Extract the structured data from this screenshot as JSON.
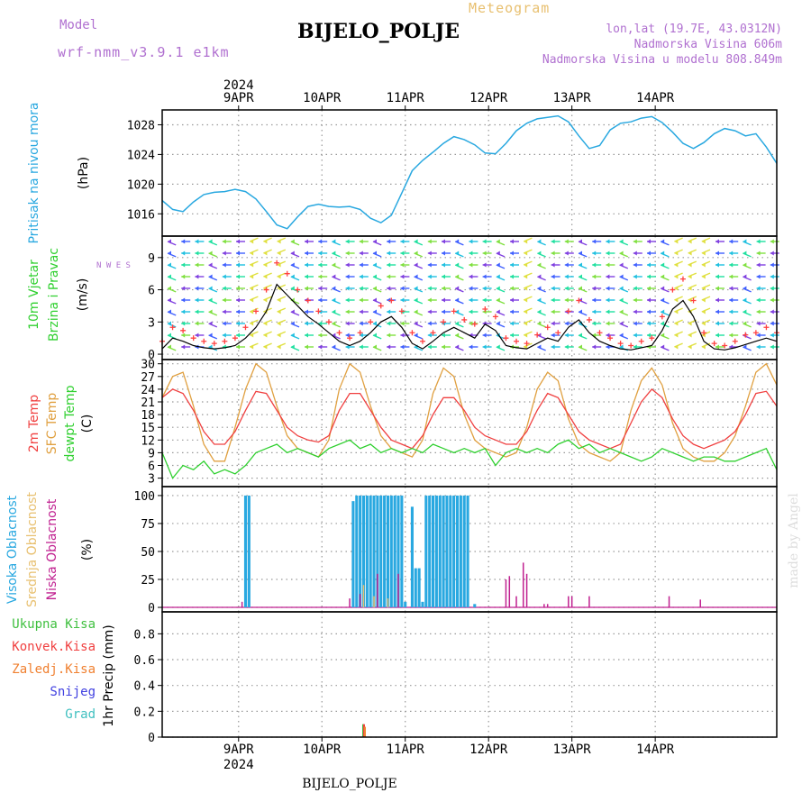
{
  "header": {
    "model_label": "Model",
    "model_name": "wrf-nmm_v3.9.1 e1km",
    "meteogram": "Meteogram",
    "station": "BIJELO_POLJE",
    "lonlat": "lon,lat (19.7E, 43.0312N)",
    "altitude": "Nadmorska Visina 606m",
    "model_altitude": "Nadmorska Visina u modelu 808.849m"
  },
  "footer": {
    "station": "BIJELO_POLJE"
  },
  "watermark": "made by Angel",
  "colors": {
    "pressure": "#29a8e0",
    "wind_speed": "#000000",
    "wind_gust": "#ff4040",
    "temp_2m": "#f04040",
    "temp_sfc": "#e0a040",
    "dewpoint": "#30d030",
    "cloud_high": "#29a8e0",
    "cloud_mid": "#e8c070",
    "cloud_low": "#c02090",
    "precip_total": "#40c040",
    "precip_conv": "#f04040",
    "precip_strat": "#f08030",
    "snow": "#4040e0",
    "hail": "#40c0c0",
    "grid": "#999999"
  },
  "chart_data": [
    {
      "type": "line",
      "panel": "pressure",
      "ylabel": "Pritisak na nivou mora",
      "unit": "(hPa)",
      "x_unit": "hours from 2024-04-08 12 UTC",
      "date_ticks": [
        "9APR",
        "10APR",
        "11APR",
        "12APR",
        "13APR",
        "14APR"
      ],
      "year": "2024",
      "yticks": [
        1016,
        1020,
        1024,
        1028
      ],
      "ylim": [
        1013,
        1030
      ],
      "series": [
        {
          "name": "MSLP",
          "x": [
            0,
            3,
            6,
            9,
            12,
            15,
            18,
            21,
            24,
            27,
            30,
            33,
            36,
            39,
            42,
            45,
            48,
            51,
            54,
            57,
            60,
            63,
            66,
            69,
            72,
            75,
            78,
            81,
            84,
            87,
            90,
            93,
            96,
            99,
            102,
            105,
            108,
            111,
            114,
            117,
            120,
            123,
            126,
            129,
            132,
            135,
            138,
            141,
            144,
            147,
            150,
            153,
            156,
            159,
            162,
            165,
            168,
            171,
            174,
            177
          ],
          "values": [
            1017.8,
            1016.6,
            1016.3,
            1017.6,
            1018.6,
            1018.9,
            1019.0,
            1019.3,
            1019.0,
            1018.0,
            1016.3,
            1014.5,
            1014.0,
            1015.6,
            1017.0,
            1017.3,
            1017.0,
            1016.9,
            1017.0,
            1016.6,
            1015.4,
            1014.8,
            1015.8,
            1018.8,
            1021.8,
            1023.2,
            1024.3,
            1025.5,
            1026.4,
            1026.0,
            1025.3,
            1024.2,
            1024.1,
            1025.5,
            1027.2,
            1028.2,
            1028.8,
            1029.0,
            1029.2,
            1028.4,
            1026.5,
            1024.8,
            1025.2,
            1027.3,
            1028.2,
            1028.4,
            1028.9,
            1029.1,
            1028.3,
            1027.0,
            1025.5,
            1024.8,
            1025.6,
            1026.8,
            1027.5,
            1027.2,
            1026.5,
            1026.8,
            1025.0,
            1022.8
          ]
        }
      ]
    },
    {
      "type": "line",
      "panel": "wind",
      "ylabel": "10m Vjetar",
      "ylabel2": "Brzina i Pravac",
      "unit": "(m/s)",
      "compass": [
        "N",
        "W",
        "E",
        "S"
      ],
      "yticks": [
        0,
        3,
        6,
        9
      ],
      "ylim": [
        -0.5,
        11
      ],
      "series": [
        {
          "name": "speed",
          "x": [
            0,
            3,
            6,
            9,
            12,
            15,
            18,
            21,
            24,
            27,
            30,
            33,
            36,
            39,
            42,
            45,
            48,
            51,
            54,
            57,
            60,
            63,
            66,
            69,
            72,
            75,
            78,
            81,
            84,
            87,
            90,
            93,
            96,
            99,
            102,
            105,
            108,
            111,
            114,
            117,
            120,
            123,
            126,
            129,
            132,
            135,
            138,
            141,
            144,
            147,
            150,
            153,
            156,
            159,
            162,
            165,
            168,
            171,
            174,
            177
          ],
          "values": [
            0.5,
            1.5,
            1.2,
            0.8,
            0.6,
            0.5,
            0.6,
            0.8,
            1.5,
            2.5,
            4.0,
            6.5,
            5.5,
            4.5,
            3.5,
            2.8,
            2.0,
            1.2,
            0.8,
            1.2,
            2.0,
            3.0,
            3.5,
            2.5,
            1.0,
            0.5,
            1.2,
            2.0,
            2.5,
            2.0,
            1.5,
            2.8,
            2.2,
            0.8,
            0.6,
            0.5,
            1.0,
            1.5,
            1.2,
            2.5,
            3.2,
            2.0,
            1.2,
            0.8,
            0.5,
            0.4,
            0.6,
            0.8,
            2.2,
            4.2,
            5.0,
            3.5,
            1.2,
            0.5,
            0.4,
            0.6,
            0.9,
            1.2,
            1.5,
            1.2
          ]
        },
        {
          "name": "gust",
          "x": [
            0,
            3,
            6,
            9,
            12,
            15,
            18,
            21,
            24,
            27,
            30,
            33,
            36,
            39,
            42,
            45,
            48,
            51,
            54,
            57,
            60,
            63,
            66,
            69,
            72,
            75,
            78,
            81,
            84,
            87,
            90,
            93,
            96,
            99,
            102,
            105,
            108,
            111,
            114,
            117,
            120,
            123,
            126,
            129,
            132,
            135,
            138,
            141,
            144,
            147,
            150,
            153,
            156,
            159,
            162,
            165,
            168,
            171,
            174,
            177
          ],
          "values": [
            1.2,
            2.5,
            2.2,
            1.5,
            1.2,
            1.0,
            1.2,
            1.5,
            2.5,
            4.0,
            6.0,
            8.5,
            7.5,
            6.0,
            5.0,
            4.0,
            3.0,
            2.0,
            1.5,
            2.0,
            3.0,
            4.5,
            5.0,
            4.0,
            2.0,
            1.2,
            2.0,
            3.0,
            4.0,
            3.2,
            2.8,
            4.2,
            3.5,
            1.5,
            1.2,
            1.0,
            1.8,
            2.5,
            2.0,
            4.0,
            5.0,
            3.2,
            2.0,
            1.5,
            1.0,
            0.8,
            1.2,
            1.5,
            3.5,
            6.0,
            7.0,
            5.0,
            2.0,
            1.0,
            0.8,
            1.2,
            1.8,
            2.0,
            2.5,
            2.0
          ]
        }
      ]
    },
    {
      "type": "line",
      "panel": "temperature",
      "ylabel": "2m Temp",
      "ylabel2": "SFC Temp",
      "ylabel3": "dewpt Temp",
      "unit": "(C)",
      "yticks": [
        3,
        6,
        9,
        12,
        15,
        18,
        21,
        24,
        27,
        30
      ],
      "ylim": [
        1,
        31
      ],
      "series": [
        {
          "name": "2m Temp",
          "x": [
            0,
            3,
            6,
            9,
            12,
            15,
            18,
            21,
            24,
            27,
            30,
            33,
            36,
            39,
            42,
            45,
            48,
            51,
            54,
            57,
            60,
            63,
            66,
            69,
            72,
            75,
            78,
            81,
            84,
            87,
            90,
            93,
            96,
            99,
            102,
            105,
            108,
            111,
            114,
            117,
            120,
            123,
            126,
            129,
            132,
            135,
            138,
            141,
            144,
            147,
            150,
            153,
            156,
            159,
            162,
            165,
            168,
            171,
            174,
            177
          ],
          "values": [
            22,
            24,
            23,
            19,
            14,
            11,
            11,
            14,
            19,
            23.5,
            23,
            19,
            15,
            13,
            12,
            11.5,
            13,
            19,
            23,
            23,
            19,
            15,
            12,
            11,
            10,
            13,
            18,
            22,
            22,
            19,
            15,
            13,
            12,
            11,
            11,
            14,
            19,
            23,
            22,
            18,
            14,
            12,
            11,
            10,
            11,
            16,
            21,
            24,
            22,
            17,
            13,
            11,
            10,
            11,
            12,
            14,
            18,
            23,
            23.5,
            20
          ]
        },
        {
          "name": "SFC Temp",
          "x": [
            0,
            3,
            6,
            9,
            12,
            15,
            18,
            21,
            24,
            27,
            30,
            33,
            36,
            39,
            42,
            45,
            48,
            51,
            54,
            57,
            60,
            63,
            66,
            69,
            72,
            75,
            78,
            81,
            84,
            87,
            90,
            93,
            96,
            99,
            102,
            105,
            108,
            111,
            114,
            117,
            120,
            123,
            126,
            129,
            132,
            135,
            138,
            141,
            144,
            147,
            150,
            153,
            156,
            159,
            162,
            165,
            168,
            171,
            174,
            177
          ],
          "values": [
            22,
            27,
            28,
            20,
            11,
            7,
            7,
            15,
            24,
            30,
            28,
            20,
            13,
            10,
            9,
            8,
            12,
            24,
            30,
            28,
            20,
            13,
            10,
            9,
            8,
            12,
            23,
            29,
            27,
            18,
            12,
            10,
            9,
            8,
            9,
            15,
            24,
            28,
            26,
            17,
            11,
            9,
            8,
            7,
            9,
            19,
            26,
            29,
            25,
            16,
            10,
            8,
            7,
            7,
            9,
            13,
            20,
            28,
            30,
            25
          ]
        },
        {
          "name": "dewpt Temp",
          "x": [
            0,
            3,
            6,
            9,
            12,
            15,
            18,
            21,
            24,
            27,
            30,
            33,
            36,
            39,
            42,
            45,
            48,
            51,
            54,
            57,
            60,
            63,
            66,
            69,
            72,
            75,
            78,
            81,
            84,
            87,
            90,
            93,
            96,
            99,
            102,
            105,
            108,
            111,
            114,
            117,
            120,
            123,
            126,
            129,
            132,
            135,
            138,
            141,
            144,
            147,
            150,
            153,
            156,
            159,
            162,
            165,
            168,
            171,
            174,
            177
          ],
          "values": [
            9,
            3,
            6,
            5,
            7,
            4,
            5,
            4,
            6,
            9,
            10,
            11,
            9,
            10,
            9,
            8,
            10,
            11,
            12,
            10,
            11,
            9,
            10,
            9,
            10,
            9,
            11,
            10,
            9,
            10,
            9,
            10,
            6,
            9,
            10,
            9,
            10,
            9,
            11,
            12,
            10,
            11,
            9,
            10,
            9,
            8,
            7,
            8,
            10,
            9,
            8,
            7,
            8,
            8,
            7,
            7,
            8,
            9,
            10,
            5
          ]
        }
      ]
    },
    {
      "type": "bar",
      "panel": "clouds",
      "ylabel": "Visoka Oblacnost",
      "ylabel2": "Srednja Oblacnost",
      "ylabel3": "Niska Oblacnost",
      "unit": "(%)",
      "yticks": [
        0,
        25,
        50,
        75,
        100
      ],
      "ylim": [
        -4,
        108
      ],
      "series": [
        {
          "name": "Visoka Oblacnost",
          "x": [
            24,
            25,
            55,
            56,
            57,
            58,
            59,
            60,
            61,
            62,
            63,
            64,
            65,
            66,
            67,
            68,
            69,
            70,
            72,
            73,
            74,
            75,
            76,
            77,
            78,
            79,
            80,
            81,
            82,
            83,
            84,
            85,
            86,
            87,
            88,
            90
          ],
          "values": [
            100,
            100,
            95,
            100,
            100,
            100,
            100,
            100,
            100,
            100,
            100,
            100,
            100,
            100,
            100,
            100,
            100,
            5,
            90,
            35,
            35,
            5,
            100,
            100,
            100,
            100,
            100,
            100,
            100,
            100,
            100,
            100,
            100,
            100,
            100,
            3
          ]
        },
        {
          "name": "Srednja Oblacnost",
          "x": [
            58,
            61,
            65
          ],
          "values": [
            20,
            10,
            8
          ]
        },
        {
          "name": "Niska Oblacnost",
          "x": [
            23,
            54,
            57,
            62,
            68,
            99,
            100,
            102,
            104,
            105,
            110,
            111,
            117,
            118,
            123,
            146,
            155
          ],
          "values": [
            5,
            8,
            12,
            30,
            30,
            25,
            28,
            10,
            40,
            30,
            3,
            3,
            10,
            10,
            10,
            10,
            7
          ]
        }
      ]
    },
    {
      "type": "bar",
      "panel": "precip",
      "ylabel": "1hr Precip (mm)",
      "legend": [
        "Ukupna Kisa",
        "Konvek.Kisa",
        "Zaledj.Kisa",
        "Snijeg",
        "Grad"
      ],
      "yticks": [
        0,
        0.2,
        0.4,
        0.6,
        0.8
      ],
      "ylim": [
        0,
        0.97
      ],
      "series": [
        {
          "name": "Ukupna Kisa",
          "x": [
            58
          ],
          "values": [
            0.1
          ]
        },
        {
          "name": "Konvek.Kisa",
          "x": [
            58
          ],
          "values": [
            0.1
          ]
        },
        {
          "name": "Zaledj.Kisa",
          "x": [
            58
          ],
          "values": [
            0.08
          ]
        },
        {
          "name": "Snijeg",
          "x": [],
          "values": []
        },
        {
          "name": "Grad",
          "x": [],
          "values": []
        }
      ]
    }
  ]
}
